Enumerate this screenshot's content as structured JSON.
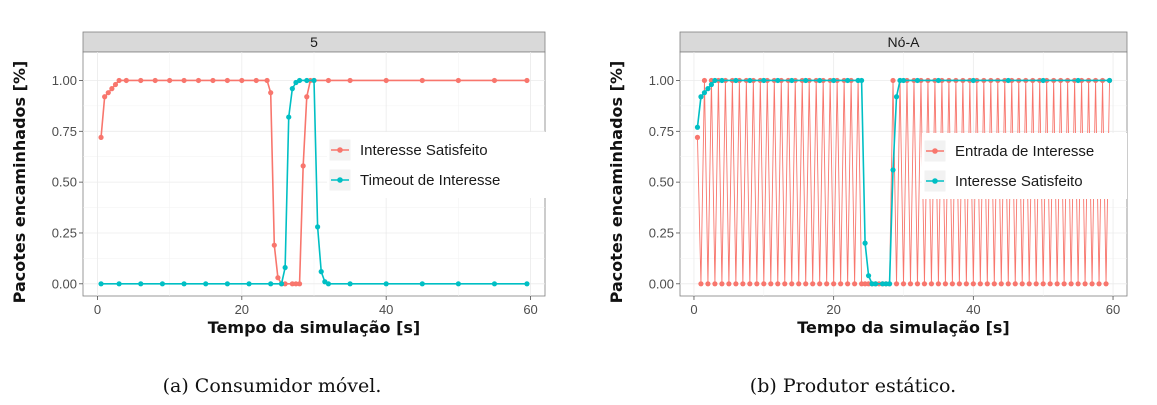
{
  "chart_data": [
    {
      "type": "line",
      "panel_label": "5",
      "caption": "(a) Consumidor móvel.",
      "xlabel": "Tempo da simulação [s]",
      "ylabel": "Pacotes encaminhados [%]",
      "xlim": [
        -2,
        62
      ],
      "ylim": [
        -0.06,
        1.14
      ],
      "x_ticks": [
        0,
        20,
        40,
        60
      ],
      "x_tick_labels": [
        "0",
        "20",
        "40",
        "60"
      ],
      "y_ticks": [
        0,
        0.25,
        0.5,
        0.75,
        1
      ],
      "y_tick_labels": [
        "0.00",
        "0.25",
        "0.50",
        "0.75",
        "1.00"
      ],
      "grid": true,
      "legend_position": "right",
      "series": [
        {
          "name": "Interesse Satisfeito",
          "color": "#F8766D",
          "x": [
            0.5,
            1.0,
            1.5,
            2.0,
            2.5,
            3.0,
            4,
            6,
            8,
            10,
            12,
            14,
            16,
            18,
            20,
            22,
            23.5,
            24.0,
            24.5,
            25.0,
            25.5,
            26,
            27,
            27.5,
            28.0,
            28.5,
            29.0,
            29.5,
            30,
            32,
            35,
            40,
            45,
            50,
            55,
            59.5
          ],
          "y": [
            0.72,
            0.92,
            0.94,
            0.96,
            0.98,
            1.0,
            1.0,
            1.0,
            1.0,
            1.0,
            1.0,
            1.0,
            1.0,
            1.0,
            1.0,
            1.0,
            1.0,
            0.94,
            0.19,
            0.03,
            0.0,
            0.0,
            0.0,
            0.0,
            0.0,
            0.58,
            0.92,
            1.0,
            1.0,
            1.0,
            1.0,
            1.0,
            1.0,
            1.0,
            1.0,
            1.0
          ]
        },
        {
          "name": "Timeout de Interesse",
          "color": "#00BFC4",
          "x": [
            0.5,
            3,
            6,
            9,
            12,
            15,
            18,
            21,
            24,
            25.5,
            26.0,
            26.5,
            27.0,
            27.5,
            28,
            29,
            30.0,
            30.5,
            31.0,
            31.5,
            32,
            35,
            40,
            45,
            50,
            55,
            59.5
          ],
          "y": [
            0.0,
            0.0,
            0.0,
            0.0,
            0.0,
            0.0,
            0.0,
            0.0,
            0.0,
            0.0,
            0.08,
            0.82,
            0.96,
            0.99,
            1.0,
            1.0,
            1.0,
            0.28,
            0.06,
            0.01,
            0.0,
            0.0,
            0.0,
            0.0,
            0.0,
            0.0,
            0.0
          ]
        }
      ]
    },
    {
      "type": "line",
      "panel_label": "Nó-A",
      "caption": "(b) Produtor estático.",
      "xlabel": "Tempo da simulação [s]",
      "ylabel": "Pacotes encaminhados [%]",
      "xlim": [
        -2,
        62
      ],
      "ylim": [
        -0.06,
        1.14
      ],
      "x_ticks": [
        0,
        20,
        40,
        60
      ],
      "x_tick_labels": [
        "0",
        "20",
        "40",
        "60"
      ],
      "y_ticks": [
        0,
        0.25,
        0.5,
        0.75,
        1
      ],
      "y_tick_labels": [
        "0.00",
        "0.25",
        "0.50",
        "0.75",
        "1.00"
      ],
      "grid": true,
      "legend_position": "right",
      "series": [
        {
          "name": "Entrada de Interesse",
          "color": "#F8766D",
          "pattern": "alternating",
          "x_start": 0.5,
          "x_end": 59.5,
          "step": 0.5,
          "odd_value": 1.0,
          "even_value": 0.0,
          "first_value": 0.72,
          "gap_start": 24.0,
          "gap_end": 28.0
        },
        {
          "name": "Interesse Satisfeito",
          "color": "#00BFC4",
          "x": [
            0.5,
            1.0,
            1.5,
            2.0,
            2.5,
            3.0,
            4,
            6,
            8,
            10,
            12,
            14,
            16,
            18,
            20,
            22,
            23.5,
            24.0,
            24.5,
            25.0,
            25.5,
            26,
            27,
            27.5,
            28.0,
            28.5,
            29.0,
            29.5,
            30,
            32,
            35,
            40,
            45,
            50,
            55,
            59.5
          ],
          "y": [
            0.77,
            0.92,
            0.94,
            0.96,
            0.98,
            1.0,
            1.0,
            1.0,
            1.0,
            1.0,
            1.0,
            1.0,
            1.0,
            1.0,
            1.0,
            1.0,
            1.0,
            1.0,
            0.2,
            0.04,
            0.0,
            0.0,
            0.0,
            0.0,
            0.0,
            0.56,
            0.92,
            1.0,
            1.0,
            1.0,
            1.0,
            1.0,
            1.0,
            1.0,
            1.0,
            1.0
          ]
        }
      ]
    }
  ]
}
